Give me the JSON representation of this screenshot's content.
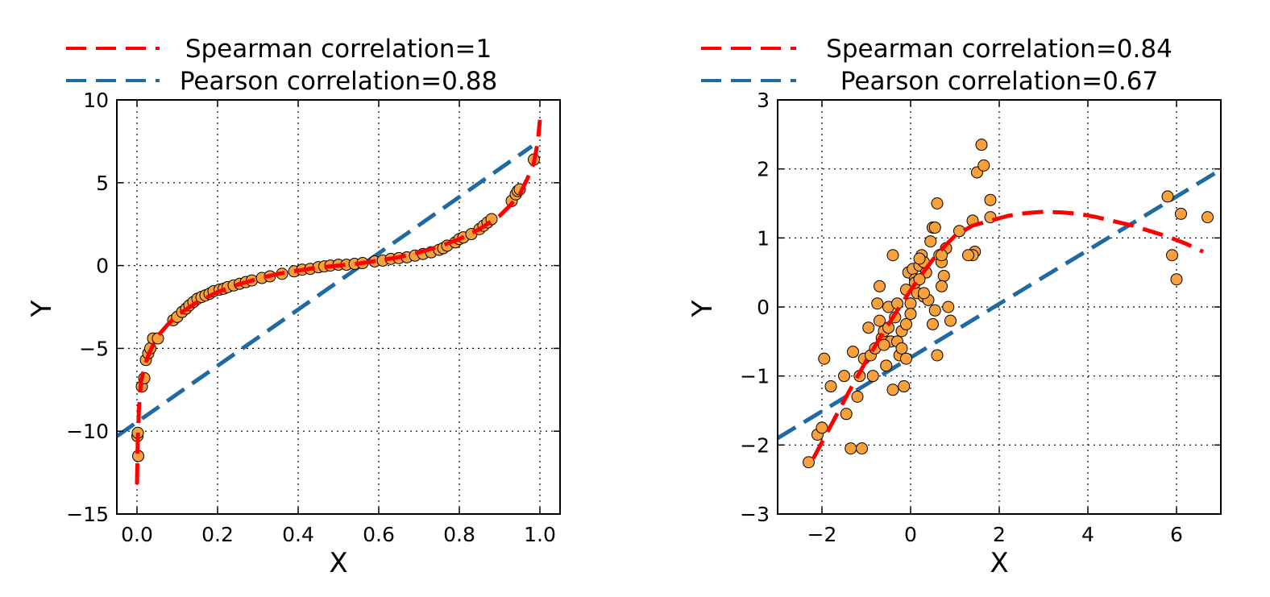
{
  "chart_data": [
    {
      "type": "scatter",
      "title": "",
      "xlabel": "X",
      "ylabel": "Y",
      "xlim": [
        -0.05,
        1.05
      ],
      "ylim": [
        -15,
        10
      ],
      "grid": true,
      "legend_position": "top",
      "xticks": [
        0.0,
        0.2,
        0.4,
        0.6,
        0.8,
        1.0
      ],
      "xtick_labels": [
        "0.0",
        "0.2",
        "0.4",
        "0.6",
        "0.8",
        "1.0"
      ],
      "yticks": [
        -15,
        -10,
        -5,
        0,
        5,
        10
      ],
      "ytick_labels": [
        "−15",
        "−10",
        "−5",
        "0",
        "5",
        "10"
      ],
      "legend": [
        {
          "label": "Spearman correlation=1",
          "color": "#ff0000"
        },
        {
          "label": "Pearson correlation=0.88",
          "color": "#1f6aa0"
        }
      ],
      "points": {
        "color": "#f6a13b",
        "x": [
          0.001,
          0.002,
          0.003,
          0.012,
          0.018,
          0.022,
          0.028,
          0.033,
          0.04,
          0.052,
          0.09,
          0.1,
          0.112,
          0.122,
          0.13,
          0.14,
          0.15,
          0.16,
          0.17,
          0.18,
          0.19,
          0.205,
          0.215,
          0.225,
          0.24,
          0.255,
          0.27,
          0.285,
          0.31,
          0.33,
          0.36,
          0.39,
          0.41,
          0.43,
          0.45,
          0.465,
          0.48,
          0.5,
          0.52,
          0.54,
          0.56,
          0.59,
          0.61,
          0.63,
          0.65,
          0.67,
          0.69,
          0.71,
          0.73,
          0.75,
          0.76,
          0.77,
          0.79,
          0.8,
          0.81,
          0.83,
          0.85,
          0.86,
          0.87,
          0.88,
          0.93,
          0.94,
          0.945,
          0.95,
          0.985
        ],
        "y": [
          -10.3,
          -10.1,
          -11.5,
          -7.3,
          -6.8,
          -5.7,
          -5.3,
          -5.0,
          -4.4,
          -4.4,
          -3.3,
          -3.1,
          -2.8,
          -2.6,
          -2.4,
          -2.2,
          -2.0,
          -1.9,
          -1.8,
          -1.7,
          -1.55,
          -1.45,
          -1.4,
          -1.3,
          -1.2,
          -1.1,
          -1.0,
          -0.9,
          -0.75,
          -0.65,
          -0.5,
          -0.35,
          -0.25,
          -0.2,
          -0.1,
          -0.05,
          0.0,
          0.05,
          0.05,
          0.1,
          0.15,
          0.25,
          0.3,
          0.4,
          0.45,
          0.5,
          0.6,
          0.7,
          0.8,
          0.95,
          1.05,
          1.2,
          1.4,
          1.6,
          1.7,
          1.9,
          2.2,
          2.4,
          2.6,
          2.8,
          3.9,
          4.3,
          4.5,
          4.6,
          6.4
        ]
      },
      "curves": [
        {
          "name": "Spearman correlation=1",
          "color": "#ff0000",
          "x": [
            0.0,
            0.002,
            0.005,
            0.01,
            0.02,
            0.03,
            0.05,
            0.075,
            0.1,
            0.15,
            0.2,
            0.25,
            0.3,
            0.35,
            0.4,
            0.45,
            0.5,
            0.55,
            0.6,
            0.65,
            0.7,
            0.75,
            0.8,
            0.85,
            0.9,
            0.925,
            0.95,
            0.97,
            0.985,
            0.995,
            1.0
          ],
          "y": [
            -13.2,
            -10.5,
            -8.6,
            -7.0,
            -6.0,
            -5.3,
            -4.3,
            -3.6,
            -3.0,
            -2.2,
            -1.6,
            -1.15,
            -0.8,
            -0.5,
            -0.3,
            -0.12,
            0.0,
            0.12,
            0.3,
            0.5,
            0.8,
            1.15,
            1.6,
            2.2,
            3.0,
            3.6,
            4.3,
            5.3,
            6.2,
            7.5,
            8.8
          ]
        },
        {
          "name": "Pearson correlation=0.88",
          "color": "#1f6aa0",
          "x": [
            -0.05,
            0.98
          ],
          "y": [
            -10.3,
            7.2
          ]
        }
      ]
    },
    {
      "type": "scatter",
      "title": "",
      "xlabel": "X",
      "ylabel": "Y",
      "xlim": [
        -3,
        7
      ],
      "ylim": [
        -3,
        3
      ],
      "grid": true,
      "legend_position": "top",
      "xticks": [
        -2,
        0,
        2,
        4,
        6
      ],
      "xtick_labels": [
        "−2",
        "0",
        "2",
        "4",
        "6"
      ],
      "yticks": [
        -3,
        -2,
        -1,
        0,
        1,
        2,
        3
      ],
      "ytick_labels": [
        "−3",
        "−2",
        "−1",
        "0",
        "1",
        "2",
        "3"
      ],
      "legend": [
        {
          "label": "Spearman correlation=0.84",
          "color": "#ff0000"
        },
        {
          "label": "Pearson correlation=0.67",
          "color": "#1f6aa0"
        }
      ],
      "points": {
        "color": "#f6a13b",
        "x": [
          -2.3,
          -2.1,
          -1.95,
          -2.0,
          -1.8,
          -1.5,
          -1.45,
          -1.35,
          -1.3,
          -1.2,
          -1.15,
          -1.1,
          -1.05,
          -0.95,
          -0.9,
          -0.85,
          -0.8,
          -0.75,
          -0.7,
          -0.7,
          -0.65,
          -0.6,
          -0.55,
          -0.5,
          -0.45,
          -0.4,
          -0.4,
          -0.35,
          -0.3,
          -0.25,
          -0.2,
          -0.15,
          -0.1,
          -0.1,
          -0.05,
          0.0,
          0.05,
          0.1,
          0.15,
          0.2,
          0.25,
          0.3,
          0.35,
          0.4,
          0.45,
          0.5,
          0.55,
          0.6,
          0.65,
          0.7,
          0.75,
          0.8,
          0.85,
          0.9,
          -0.3,
          -0.2,
          -0.1,
          0.0,
          0.1,
          0.2,
          0.3,
          0.5,
          -0.6,
          -0.5,
          0.6,
          0.7,
          1.1,
          1.4,
          1.5,
          1.6,
          1.65,
          1.8,
          1.8,
          1.45,
          1.4,
          1.3,
          0.55,
          0.3,
          0.2,
          0.7,
          5.8,
          5.9,
          6.0,
          6.1,
          6.7
        ],
        "y": [
          -2.25,
          -1.85,
          -0.75,
          -1.75,
          -1.15,
          -1.0,
          -1.55,
          -2.05,
          -0.65,
          -1.3,
          -1.0,
          -2.05,
          -0.75,
          -0.3,
          -0.7,
          -1.0,
          -0.6,
          0.05,
          -0.2,
          0.3,
          -0.45,
          -0.35,
          -0.85,
          0.0,
          -0.5,
          0.75,
          -1.2,
          -0.15,
          0.05,
          -0.7,
          -0.35,
          -1.15,
          -0.75,
          0.25,
          0.5,
          0.05,
          0.55,
          0.4,
          0.2,
          0.6,
          0.75,
          0.15,
          0.5,
          0.1,
          0.95,
          1.15,
          1.15,
          1.5,
          0.75,
          0.65,
          0.45,
          0.85,
          0.0,
          -0.2,
          -0.5,
          -0.6,
          -0.25,
          -0.1,
          0.35,
          0.4,
          0.2,
          -0.25,
          -0.55,
          -0.3,
          -0.7,
          0.3,
          1.1,
          1.25,
          1.95,
          2.35,
          2.05,
          1.3,
          1.55,
          0.8,
          0.75,
          0.75,
          -0.05,
          0.65,
          0.7,
          0.75,
          1.6,
          0.75,
          0.4,
          1.35,
          1.3
        ]
      },
      "curves": [
        {
          "name": "Spearman correlation=0.84",
          "color": "#ff0000",
          "x": [
            -2.2,
            -1.8,
            -1.4,
            -1.0,
            -0.6,
            -0.2,
            0.2,
            0.6,
            1.0,
            1.4,
            1.8,
            2.2,
            2.6,
            3.0,
            3.4,
            3.8,
            4.2,
            4.6,
            5.0,
            5.4,
            5.8,
            6.2,
            6.6
          ],
          "y": [
            -2.2,
            -1.72,
            -1.24,
            -0.78,
            -0.35,
            0.05,
            0.43,
            0.77,
            1.03,
            1.18,
            1.25,
            1.32,
            1.36,
            1.38,
            1.37,
            1.35,
            1.3,
            1.24,
            1.18,
            1.1,
            1.02,
            0.92,
            0.8
          ]
        },
        {
          "name": "Pearson correlation=0.67",
          "color": "#1f6aa0",
          "x": [
            -3,
            6.95
          ],
          "y": [
            -1.9,
            1.97
          ]
        }
      ]
    }
  ]
}
